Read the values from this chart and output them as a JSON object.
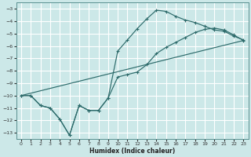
{
  "xlabel": "Humidex (Indice chaleur)",
  "bg_color": "#cce8e8",
  "grid_color": "#ffffff",
  "line_color": "#2d6b6b",
  "xlim": [
    -0.5,
    23.5
  ],
  "ylim": [
    -13.5,
    -2.5
  ],
  "xticks": [
    0,
    1,
    2,
    3,
    4,
    5,
    6,
    7,
    8,
    9,
    10,
    11,
    12,
    13,
    14,
    15,
    16,
    17,
    18,
    19,
    20,
    21,
    22,
    23
  ],
  "yticks": [
    -3,
    -4,
    -5,
    -6,
    -7,
    -8,
    -9,
    -10,
    -11,
    -12,
    -13
  ],
  "line1_x": [
    0,
    1,
    2,
    3,
    4,
    5,
    6,
    7,
    8,
    9,
    10,
    11,
    12,
    13,
    14,
    15,
    16,
    17,
    18,
    19,
    20,
    21,
    22,
    23
  ],
  "line1_y": [
    -10.0,
    -10.0,
    -10.8,
    -11.0,
    -11.9,
    -13.2,
    -10.8,
    -11.2,
    -11.2,
    -10.2,
    -6.4,
    -5.5,
    -4.6,
    -3.8,
    -3.1,
    -3.2,
    -3.6,
    -3.9,
    -4.1,
    -4.4,
    -4.7,
    -4.8,
    -5.2,
    -5.5
  ],
  "line2_x": [
    0,
    1,
    2,
    3,
    4,
    5,
    6,
    7,
    8,
    9,
    10,
    11,
    12,
    13,
    14,
    15,
    16,
    17,
    18,
    19,
    20,
    21,
    22,
    23
  ],
  "line2_y": [
    -10.0,
    -10.0,
    -10.8,
    -11.0,
    -11.9,
    -13.2,
    -10.8,
    -11.2,
    -11.2,
    -10.2,
    -8.5,
    -8.3,
    -8.1,
    -7.5,
    -6.6,
    -6.1,
    -5.7,
    -5.3,
    -4.9,
    -4.65,
    -4.55,
    -4.7,
    -5.1,
    -5.55
  ],
  "line3_x": [
    0,
    23
  ],
  "line3_y": [
    -10.0,
    -5.55
  ]
}
